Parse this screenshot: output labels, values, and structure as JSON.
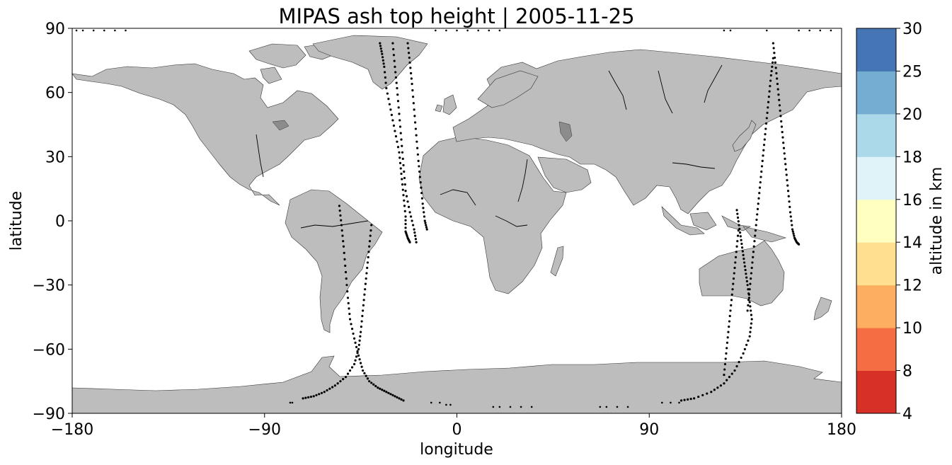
{
  "title": "MIPAS ash top height | 2005-11-25",
  "x_axis": {
    "label": "longitude",
    "range": [
      -180,
      180
    ],
    "ticks": [
      {
        "value": -180,
        "label": "−180"
      },
      {
        "value": -90,
        "label": "−90"
      },
      {
        "value": 0,
        "label": "0"
      },
      {
        "value": 90,
        "label": "90"
      },
      {
        "value": 180,
        "label": "180"
      }
    ]
  },
  "y_axis": {
    "label": "latitude",
    "range": [
      -90,
      90
    ],
    "ticks": [
      {
        "value": 90,
        "label": "90"
      },
      {
        "value": 60,
        "label": "60"
      },
      {
        "value": 30,
        "label": "30"
      },
      {
        "value": 0,
        "label": "0"
      },
      {
        "value": -30,
        "label": "−30"
      },
      {
        "value": -60,
        "label": "−60"
      },
      {
        "value": -90,
        "label": "−90"
      }
    ]
  },
  "colorbar": {
    "label": "altitude in km",
    "bounds": [
      "4",
      "8",
      "10",
      "12",
      "14",
      "16",
      "18",
      "20",
      "25",
      "30"
    ],
    "colors": [
      "#a50026",
      "#d73027",
      "#f46d43",
      "#fdae61",
      "#fee090",
      "#ffffbf",
      "#e0f3f8",
      "#abd9e9",
      "#74add1",
      "#4575b4",
      "#313695"
    ]
  },
  "style": {
    "land_color": "#bdbdbd",
    "coast_color": "#333333",
    "track_color": "#000000"
  },
  "chart_data": {
    "type": "scatter",
    "projection": "PlateCarree",
    "xlim": [
      -180,
      180
    ],
    "ylim": [
      -90,
      90
    ],
    "grid": false,
    "tracks": [
      {
        "lon": [
          -36,
          -35,
          -34,
          -33,
          -31,
          -29,
          -27,
          -26,
          -25,
          -24,
          -24,
          -23,
          -22
        ],
        "lat": [
          83,
          78,
          72,
          62,
          52,
          42,
          32,
          22,
          12,
          2,
          -5,
          -8,
          -10
        ]
      },
      {
        "lon": [
          -23,
          -22,
          -21,
          -20,
          -19,
          -18,
          -17,
          -16,
          -15,
          -14
        ],
        "lat": [
          83,
          74,
          64,
          52,
          40,
          28,
          18,
          8,
          0,
          -4
        ]
      },
      {
        "lon": [
          -30,
          -29,
          -28,
          -27,
          -26,
          -25,
          -24,
          -22,
          -20,
          -19
        ],
        "lat": [
          83,
          72,
          62,
          50,
          38,
          26,
          14,
          4,
          -4,
          -10
        ]
      },
      {
        "lon": [
          -55,
          -54,
          -53,
          -52,
          -51,
          -50,
          -48,
          -46,
          -44,
          -41,
          -37,
          -33,
          -29,
          -25
        ],
        "lat": [
          7,
          -2,
          -12,
          -24,
          -36,
          -46,
          -55,
          -63,
          -70,
          -75,
          -78,
          -80,
          -82,
          -84
        ]
      },
      {
        "lon": [
          -40,
          -41,
          -42,
          -43,
          -44,
          -45,
          -46,
          -48,
          -52,
          -57,
          -62,
          -67,
          -72
        ],
        "lat": [
          -2,
          -12,
          -22,
          -32,
          -42,
          -52,
          -60,
          -67,
          -73,
          -77,
          -80,
          -82,
          -83
        ]
      },
      {
        "lon": [
          136,
          137,
          138,
          139,
          140,
          141,
          142,
          143,
          144,
          145,
          146,
          147,
          148
        ],
        "lat": [
          -42,
          -32,
          -22,
          -12,
          -2,
          8,
          18,
          28,
          38,
          48,
          58,
          68,
          76
        ]
      },
      {
        "lon": [
          148,
          149,
          150,
          151,
          152,
          153,
          154,
          155,
          156,
          157,
          158,
          159,
          160
        ],
        "lat": [
          83,
          74,
          64,
          54,
          44,
          34,
          24,
          14,
          4,
          -4,
          -8,
          -10,
          -11
        ]
      },
      {
        "lon": [
          131,
          132,
          133,
          134,
          135,
          136,
          137,
          138,
          137,
          134,
          130,
          125,
          119,
          111,
          105
        ],
        "lat": [
          5,
          -2,
          -9,
          -16,
          -23,
          -30,
          -38,
          -46,
          -54,
          -62,
          -70,
          -76,
          -80,
          -83,
          -84
        ]
      },
      {
        "lon": [
          125,
          126,
          127,
          128,
          129,
          130,
          131,
          132
        ],
        "lat": [
          -72,
          -62,
          -52,
          -42,
          -32,
          -22,
          -12,
          -2
        ]
      }
    ],
    "polar_points": [
      {
        "lon": [
          -178,
          -175,
          -170,
          -165,
          -160,
          -155
        ],
        "lat": [
          89,
          89,
          89,
          89,
          89,
          89
        ]
      },
      {
        "lon": [
          -10,
          -5,
          0,
          5,
          10,
          15,
          20
        ],
        "lat": [
          89,
          89,
          89,
          89,
          89,
          89,
          89
        ]
      },
      {
        "lon": [
          125,
          128,
          145,
          160,
          165,
          170,
          175
        ],
        "lat": [
          89,
          89,
          89,
          89,
          89,
          89,
          89
        ]
      },
      {
        "lon": [
          -12,
          -8,
          -5,
          -3
        ],
        "lat": [
          -85,
          -85,
          -86,
          -86
        ]
      },
      {
        "lon": [
          17,
          20,
          25,
          30,
          35
        ],
        "lat": [
          -87,
          -87,
          -87,
          -87,
          -87
        ]
      },
      {
        "lon": [
          67,
          70,
          75,
          80
        ],
        "lat": [
          -87,
          -87,
          -87,
          -87
        ]
      },
      {
        "lon": [
          -78,
          -77
        ],
        "lat": [
          -85,
          -85
        ]
      },
      {
        "lon": [
          96,
          100,
          104
        ],
        "lat": [
          -85,
          -85,
          -85
        ]
      }
    ]
  }
}
